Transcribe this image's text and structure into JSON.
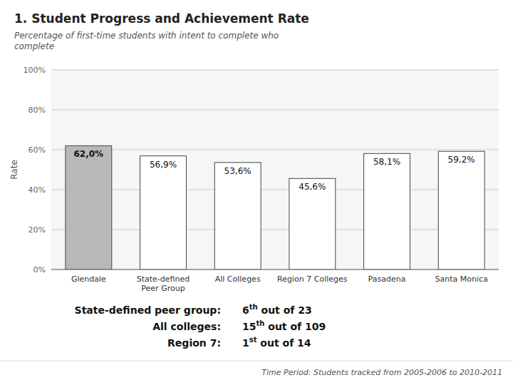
{
  "chart_data": {
    "type": "bar",
    "title": "1. Student Progress and Achievement Rate",
    "subtitle": "Percentage of first-time students with intent to complete who\ncomplete",
    "categories": [
      "Glendale",
      "State-defined\nPeer Group",
      "All Colleges",
      "Region 7 Colleges",
      "Pasadena",
      "Santa Monica"
    ],
    "values": [
      62.0,
      56.9,
      53.6,
      45.6,
      58.1,
      59.2
    ],
    "value_labels": [
      "62,0%",
      "56,9%",
      "53,6%",
      "45,6%",
      "58,1%",
      "59,2%"
    ],
    "data_labels": true,
    "colors": [
      "#b8b8b8",
      "#ffffff",
      "#ffffff",
      "#ffffff",
      "#ffffff",
      "#ffffff"
    ],
    "ylabel": "Rate",
    "ylim": [
      0,
      100
    ],
    "yticks": [
      {
        "value": 0,
        "label": "0%"
      },
      {
        "value": 20,
        "label": "20%"
      },
      {
        "value": 40,
        "label": "40%"
      },
      {
        "value": 60,
        "label": "60%"
      },
      {
        "value": 80,
        "label": "80%"
      },
      {
        "value": 100,
        "label": "100%"
      }
    ],
    "grid": true,
    "annotations": [
      {
        "label": "State-defined peer group:",
        "rank": "6",
        "sup": "th",
        "rest": " out of 23"
      },
      {
        "label": "All colleges:",
        "rank": "15",
        "sup": "th",
        "rest": " out of 109"
      },
      {
        "label": "Region 7:",
        "rank": "1",
        "sup": "st",
        "rest": " out of 14"
      }
    ],
    "footnote": "Time Period: Students tracked from 2005-2006 to 2010-2011"
  }
}
